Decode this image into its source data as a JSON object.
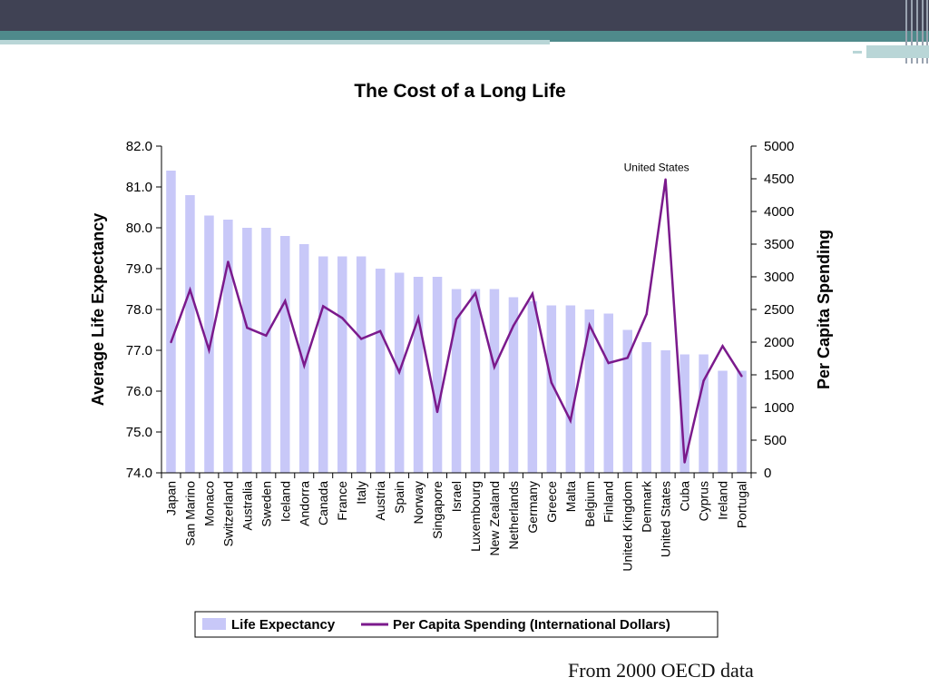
{
  "slide": {
    "footnote": "From 2000 OECD data",
    "colors": {
      "top_bar": "#404254",
      "accent_teal": "#4f8a8b",
      "accent_light": "#b9d6d7"
    }
  },
  "chart_data": {
    "type": "bar",
    "title": "The Cost of a Long Life",
    "ylabel": "Average Life Expectancy",
    "y2label": "Per Capita Spending",
    "ylim": [
      74.0,
      82.0
    ],
    "y2lim": [
      0,
      5000
    ],
    "yticks": [
      "74.0",
      "75.0",
      "76.0",
      "77.0",
      "78.0",
      "79.0",
      "80.0",
      "81.0",
      "82.0"
    ],
    "y2ticks": [
      "0",
      "500",
      "1000",
      "1500",
      "2000",
      "2500",
      "3000",
      "3500",
      "4000",
      "4500",
      "5000"
    ],
    "grid": false,
    "legend_position": "bottom",
    "categories": [
      "Japan",
      "San Marino",
      "Monaco",
      "Switzerland",
      "Australia",
      "Sweden",
      "Iceland",
      "Andorra",
      "Canada",
      "France",
      "Italy",
      "Austria",
      "Spain",
      "Norway",
      "Singapore",
      "Israel",
      "Luxembourg",
      "New Zealand",
      "Netherlands",
      "Germany",
      "Greece",
      "Malta",
      "Belgium",
      "Finland",
      "United Kingdom",
      "Denmark",
      "United States",
      "Cuba",
      "Cyprus",
      "Ireland",
      "Portugal"
    ],
    "series": [
      {
        "name": "Life Expectancy",
        "type": "bar",
        "axis": "left",
        "color": "#c8c8f8",
        "values": [
          81.4,
          80.8,
          80.3,
          80.2,
          80.0,
          80.0,
          79.8,
          79.6,
          79.3,
          79.3,
          79.3,
          79.0,
          78.9,
          78.8,
          78.8,
          78.5,
          78.5,
          78.5,
          78.3,
          78.2,
          78.1,
          78.1,
          78.0,
          77.9,
          77.5,
          77.2,
          77.0,
          76.9,
          76.9,
          76.5,
          76.5
        ]
      },
      {
        "name": "Per Capita Spending (International Dollars)",
        "type": "line",
        "axis": "right",
        "color": "#7b1a8c",
        "values": [
          2000,
          2800,
          1880,
          3230,
          2220,
          2100,
          2630,
          1640,
          2550,
          2370,
          2050,
          2170,
          1540,
          2370,
          930,
          2350,
          2750,
          1620,
          2250,
          2740,
          1380,
          800,
          2260,
          1680,
          1760,
          2430,
          4490,
          160,
          1410,
          1940,
          1480
        ]
      }
    ],
    "annotations": [
      {
        "text": "United States",
        "category": "United States",
        "series": 1
      }
    ]
  }
}
